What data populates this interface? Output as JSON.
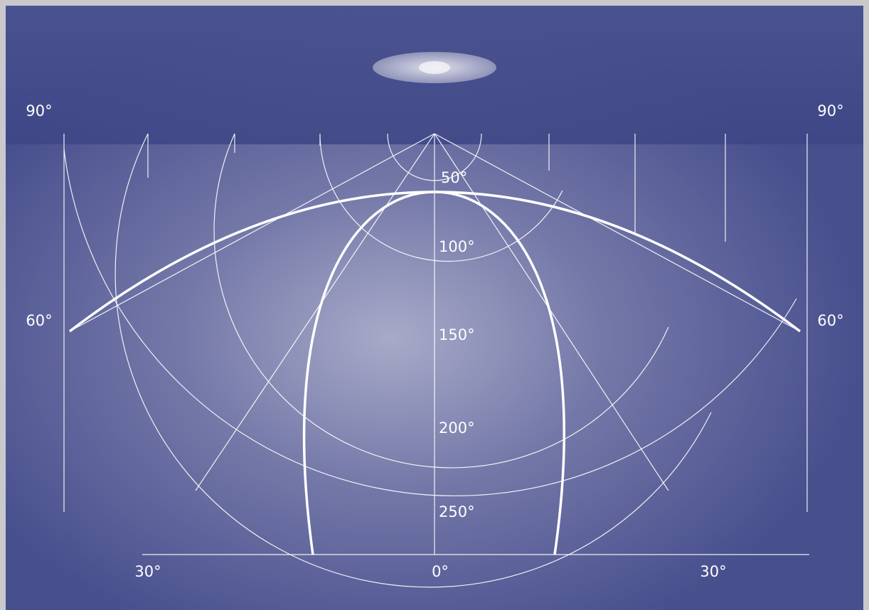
{
  "angle_labels": {
    "top_left": "90°",
    "top_right": "90°",
    "mid_left": "60°",
    "mid_right": "60°",
    "bottom_left": "30°",
    "bottom_center": "0°",
    "bottom_right": "30°"
  },
  "ring_labels": [
    "50°",
    "100°",
    "150°",
    "200°",
    "250°"
  ]
}
